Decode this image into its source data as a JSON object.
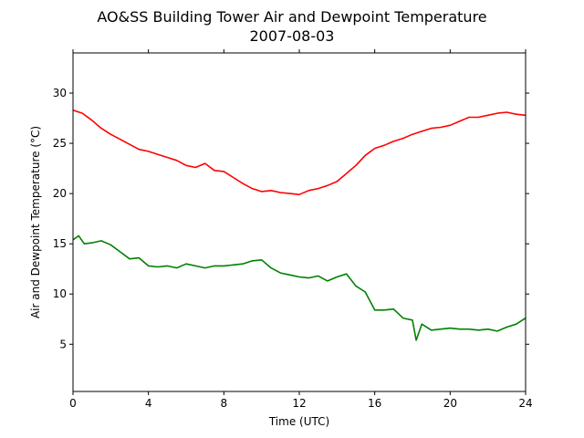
{
  "chart_data": {
    "type": "line",
    "title": "AO&SS Building Tower Air and Dewpoint Temperature",
    "subtitle": "2007-08-03",
    "xlabel": "Time (UTC)",
    "ylabel": "Air and Dewpoint Temperature (°C)",
    "xlim": [
      0,
      24
    ],
    "ylim": [
      0.3,
      34
    ],
    "xticks": [
      0,
      4,
      8,
      12,
      16,
      20,
      24
    ],
    "yticks": [
      5,
      10,
      15,
      20,
      25,
      30
    ],
    "grid": false,
    "series": [
      {
        "color": "#ff0000",
        "x": [
          0,
          0.5,
          1,
          1.5,
          2,
          2.5,
          3,
          3.5,
          4,
          4.5,
          5,
          5.5,
          6,
          6.5,
          7,
          7.5,
          8,
          8.5,
          9,
          9.5,
          10,
          10.5,
          11,
          11.5,
          12,
          12.5,
          13,
          13.5,
          14,
          14.5,
          15,
          15.5,
          16,
          16.5,
          17,
          17.5,
          18,
          18.5,
          19,
          19.5,
          20,
          20.5,
          21,
          21.5,
          22,
          22.5,
          23,
          23.5,
          24
        ],
        "values": [
          28.3,
          28.0,
          27.3,
          26.5,
          25.9,
          25.4,
          24.9,
          24.4,
          24.2,
          23.9,
          23.6,
          23.3,
          22.8,
          22.6,
          23.0,
          22.3,
          22.2,
          21.6,
          21.0,
          20.5,
          20.2,
          20.3,
          20.1,
          20.0,
          19.9,
          20.3,
          20.5,
          20.8,
          21.2,
          22.0,
          22.8,
          23.8,
          24.5,
          24.8,
          25.2,
          25.5,
          25.9,
          26.2,
          26.5,
          26.6,
          26.8,
          27.2,
          27.6,
          27.6,
          27.8,
          28.0,
          28.1,
          27.9,
          27.8
        ]
      },
      {
        "color": "#008000",
        "x": [
          0,
          0.3,
          0.6,
          1,
          1.5,
          2,
          2.5,
          3,
          3.5,
          4,
          4.5,
          5,
          5.5,
          6,
          6.5,
          7,
          7.5,
          8,
          8.5,
          9,
          9.5,
          10,
          10.5,
          11,
          11.5,
          12,
          12.5,
          13,
          13.5,
          14,
          14.5,
          15,
          15.5,
          16,
          16.5,
          17,
          17.5,
          18,
          18.2,
          18.5,
          19,
          19.5,
          20,
          20.5,
          21,
          21.5,
          22,
          22.5,
          23,
          23.5,
          24
        ],
        "values": [
          15.4,
          15.8,
          15.0,
          15.1,
          15.3,
          14.9,
          14.2,
          13.5,
          13.6,
          12.8,
          12.7,
          12.8,
          12.6,
          13.0,
          12.8,
          12.6,
          12.8,
          12.8,
          12.9,
          13.0,
          13.3,
          13.4,
          12.6,
          12.1,
          11.9,
          11.7,
          11.6,
          11.8,
          11.3,
          11.7,
          12.0,
          10.8,
          10.2,
          8.4,
          8.4,
          8.5,
          7.6,
          7.4,
          5.4,
          7.0,
          6.4,
          6.5,
          6.6,
          6.5,
          6.5,
          6.4,
          6.5,
          6.3,
          6.7,
          7.0,
          7.6
        ]
      }
    ]
  }
}
